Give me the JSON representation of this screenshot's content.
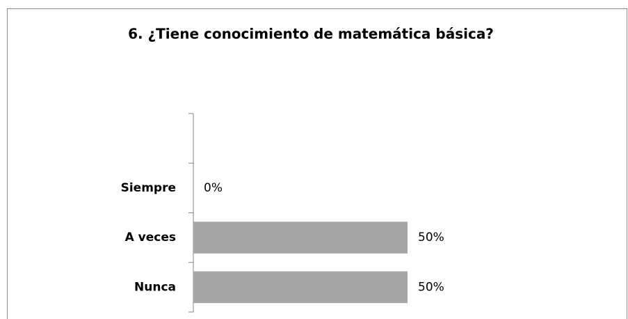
{
  "chart_data": {
    "type": "hbar",
    "title": "6. ¿Tiene conocimiento de matemática básica?",
    "categories": [
      null,
      "Siempre",
      "A veces",
      "Nunca"
    ],
    "values": [
      null,
      0,
      50,
      50
    ],
    "value_labels": [
      null,
      "0%",
      "50%",
      "50%"
    ],
    "color": "#a6a6a6"
  }
}
